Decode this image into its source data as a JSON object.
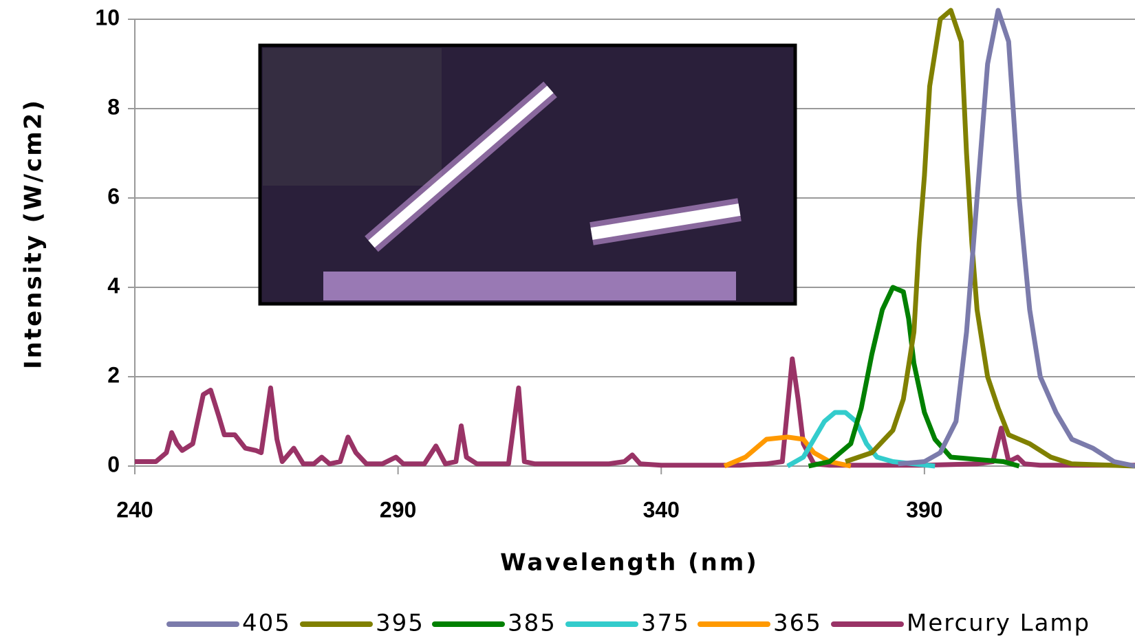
{
  "chart_data": {
    "type": "line",
    "y_label": "Intensity (W/cm2)",
    "x_label": "Wavelength (nm)",
    "xlim": [
      240,
      430
    ],
    "xticks": [
      240,
      290,
      340,
      390
    ],
    "ylim": [
      0,
      10
    ],
    "yticks": [
      0,
      2,
      4,
      6,
      8,
      10
    ],
    "grid": true,
    "legend": "bottom",
    "series": [
      {
        "name": "405",
        "color": "#7b7bab",
        "x": [
          385,
          390,
          393,
          396,
          398,
          400,
          402,
          404,
          406,
          408,
          410,
          412,
          415,
          418,
          422,
          426,
          430
        ],
        "values": [
          0.05,
          0.1,
          0.3,
          1,
          3,
          6,
          9,
          10.2,
          9.5,
          6,
          3.5,
          2,
          1.2,
          0.6,
          0.4,
          0.1,
          0
        ]
      },
      {
        "name": "395",
        "color": "#808000",
        "x": [
          375,
          380,
          384,
          386,
          388,
          389,
          390,
          391,
          393,
          395,
          397,
          398,
          399,
          400,
          402,
          404,
          406,
          410,
          414,
          418,
          430
        ],
        "values": [
          0.1,
          0.3,
          0.8,
          1.5,
          3,
          5,
          6.5,
          8.5,
          10,
          10.2,
          9.5,
          7,
          5,
          3.5,
          2,
          1.3,
          0.7,
          0.5,
          0.2,
          0.05,
          0
        ]
      },
      {
        "name": "385",
        "color": "#008000",
        "x": [
          368,
          372,
          376,
          378,
          380,
          382,
          384,
          386,
          387,
          388,
          390,
          392,
          395,
          400,
          405,
          408
        ],
        "values": [
          0,
          0.1,
          0.5,
          1.3,
          2.5,
          3.5,
          4,
          3.9,
          3.3,
          2.3,
          1.2,
          0.6,
          0.2,
          0.15,
          0.1,
          0
        ]
      },
      {
        "name": "375",
        "color": "#33cccc",
        "x": [
          364,
          367,
          369,
          371,
          373,
          375,
          377,
          379,
          381,
          384,
          388,
          392
        ],
        "values": [
          0,
          0.2,
          0.6,
          1,
          1.2,
          1.2,
          1,
          0.5,
          0.2,
          0.1,
          0.05,
          0
        ]
      },
      {
        "name": "365",
        "color": "#ff9900",
        "x": [
          352,
          356,
          358,
          360,
          364,
          367,
          369,
          372,
          376
        ],
        "values": [
          0,
          0.2,
          0.4,
          0.6,
          0.65,
          0.6,
          0.3,
          0.1,
          0
        ]
      },
      {
        "name": "Mercury Lamp",
        "color": "#993366",
        "x": [
          240,
          244,
          246,
          247,
          248,
          249,
          251,
          253,
          254.4,
          256,
          257,
          259,
          261,
          263,
          264,
          265.8,
          267,
          268,
          270.2,
          272,
          274,
          275.5,
          277,
          279,
          280.5,
          282,
          284,
          287,
          289.6,
          291,
          293,
          295,
          297.2,
          299,
          301,
          302,
          303,
          305,
          308,
          311,
          312.9,
          314,
          316,
          320,
          325,
          330,
          333,
          334.5,
          336,
          340,
          345,
          350,
          355,
          360,
          363,
          364.9,
          366,
          367,
          369,
          372,
          380,
          390,
          400,
          403,
          404.6,
          406,
          407.7,
          409,
          412,
          420,
          430
        ],
        "values": [
          0.1,
          0.1,
          0.3,
          0.75,
          0.5,
          0.35,
          0.5,
          1.6,
          1.7,
          1.1,
          0.7,
          0.7,
          0.4,
          0.35,
          0.3,
          1.75,
          0.6,
          0.1,
          0.4,
          0.05,
          0.05,
          0.2,
          0.05,
          0.1,
          0.65,
          0.3,
          0.05,
          0.05,
          0.2,
          0.05,
          0.05,
          0.05,
          0.45,
          0.05,
          0.1,
          0.9,
          0.2,
          0.05,
          0.05,
          0.05,
          1.75,
          0.1,
          0.05,
          0.05,
          0.05,
          0.05,
          0.1,
          0.25,
          0.05,
          0.02,
          0.02,
          0.02,
          0.02,
          0.05,
          0.1,
          2.4,
          1.5,
          0.5,
          0.05,
          0.02,
          0.02,
          0.02,
          0.05,
          0.1,
          0.85,
          0.1,
          0.2,
          0.05,
          0.02,
          0.02,
          0.02
        ]
      }
    ]
  }
}
